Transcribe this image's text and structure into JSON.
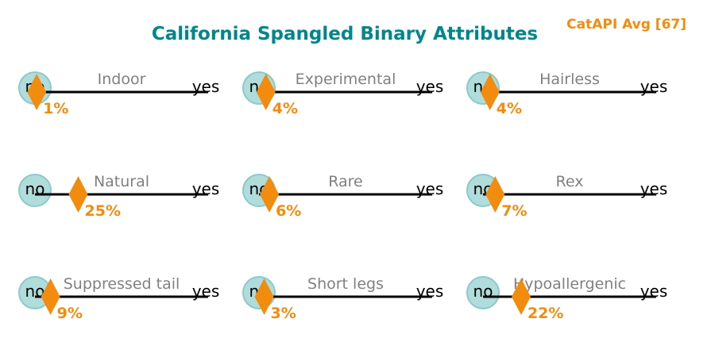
{
  "chart_data": {
    "type": "scatter",
    "title": "California Spangled Binary Attributes",
    "subtitle": "CatAPI Avg [67]",
    "scale_labels": {
      "low": "no",
      "high": "yes"
    },
    "value_range": [
      0,
      100
    ],
    "colors": {
      "title": "#00868b",
      "accent": "#f28c0f",
      "circle": "#b0dcdc",
      "circle_edge": "#8ccaca",
      "line": "#000000"
    },
    "attributes": [
      {
        "name": "Indoor",
        "value": 1,
        "value_label": "1%"
      },
      {
        "name": "Experimental",
        "value": 4,
        "value_label": "4%"
      },
      {
        "name": "Hairless",
        "value": 4,
        "value_label": "4%"
      },
      {
        "name": "Natural",
        "value": 25,
        "value_label": "25%"
      },
      {
        "name": "Rare",
        "value": 6,
        "value_label": "6%"
      },
      {
        "name": "Rex",
        "value": 7,
        "value_label": "7%"
      },
      {
        "name": "Suppressed tail",
        "value": 9,
        "value_label": "9%"
      },
      {
        "name": "Short legs",
        "value": 3,
        "value_label": "3%"
      },
      {
        "name": "Hypoallergenic",
        "value": 22,
        "value_label": "22%"
      }
    ]
  }
}
